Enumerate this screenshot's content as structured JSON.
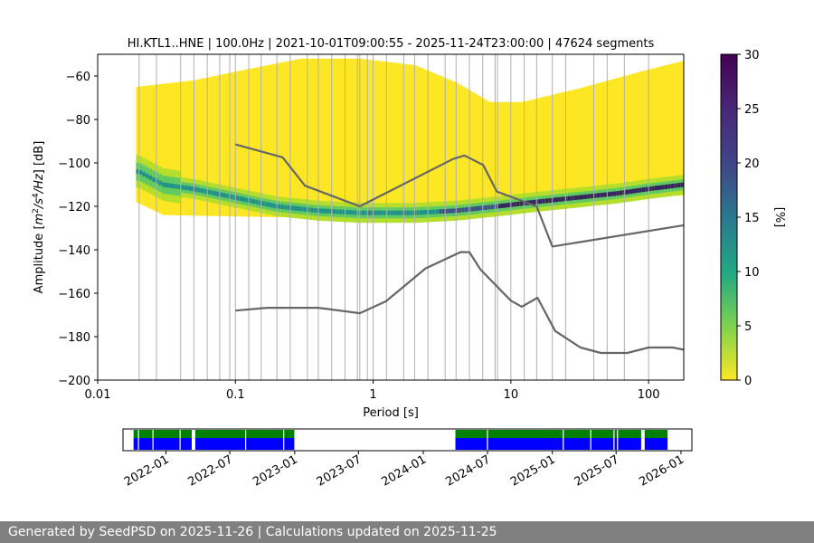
{
  "chart_data": [
    {
      "type": "heatmap",
      "title": "HI.KTL1..HNE | 100.0Hz | 2021-10-01T09:00:55 - 2025-11-24T23:00:00 | 47624 segments",
      "xlabel": "Period [s]",
      "ylabel_prefix": "Amplitude [",
      "ylabel_math": [
        "m",
        "2",
        "/s",
        "4",
        "/Hz"
      ],
      "ylabel_suffix": "] [dB]",
      "x_scale": "log",
      "xlim": [
        0.01,
        180
      ],
      "ylim": [
        -200,
        -50
      ],
      "x_ticks": [
        {
          "value": 0.01,
          "label": "0.01"
        },
        {
          "value": 0.1,
          "label": "0.1"
        },
        {
          "value": 1,
          "label": "1"
        },
        {
          "value": 10,
          "label": "10"
        },
        {
          "value": 100,
          "label": "100"
        }
      ],
      "y_ticks": [
        {
          "value": -60,
          "label": "−60"
        },
        {
          "value": -80,
          "label": "−80"
        },
        {
          "value": -100,
          "label": "−100"
        },
        {
          "value": -120,
          "label": "−120"
        },
        {
          "value": -140,
          "label": "−140"
        },
        {
          "value": -160,
          "label": "−160"
        },
        {
          "value": -180,
          "label": "−180"
        },
        {
          "value": -200,
          "label": "−200"
        }
      ],
      "grid": true,
      "grid_periods": [
        0.02,
        0.0267,
        0.04,
        0.05,
        0.0625,
        0.0769,
        0.0909,
        0.1,
        0.125,
        0.1538,
        0.2,
        0.25,
        0.333,
        0.4,
        0.5,
        0.625,
        0.769,
        0.8,
        0.909,
        1.0,
        1.25,
        1.667,
        2.0,
        2.5,
        3.333,
        4.0,
        5.0,
        6.25,
        7.69,
        8.0,
        10.0,
        12.5,
        15.38,
        20.0,
        25.0,
        40.0,
        50.0,
        66.7,
        100.0
      ],
      "density": {
        "mode_curve": [
          [
            0.02,
            -104
          ],
          [
            0.03,
            -110
          ],
          [
            0.05,
            -112
          ],
          [
            0.1,
            -116
          ],
          [
            0.2,
            -120
          ],
          [
            0.4,
            -122
          ],
          [
            0.8,
            -123
          ],
          [
            2,
            -123
          ],
          [
            4,
            -122
          ],
          [
            8,
            -120
          ],
          [
            15,
            -118
          ],
          [
            30,
            -116
          ],
          [
            60,
            -114
          ],
          [
            100,
            -112
          ],
          [
            180,
            -110
          ]
        ],
        "upper_envelope": [
          [
            0.019,
            -65
          ],
          [
            0.05,
            -62
          ],
          [
            0.1,
            -58
          ],
          [
            0.3,
            -52
          ],
          [
            0.8,
            -52
          ],
          [
            2,
            -55
          ],
          [
            4,
            -63
          ],
          [
            7,
            -72
          ],
          [
            12,
            -72
          ],
          [
            30,
            -66
          ],
          [
            100,
            -57
          ],
          [
            180,
            -53
          ]
        ],
        "lower_envelope": [
          [
            0.019,
            -118
          ],
          [
            0.03,
            -124
          ],
          [
            0.2,
            -125
          ],
          [
            1,
            -125
          ],
          [
            3,
            -124
          ],
          [
            8,
            -122
          ],
          [
            15,
            -120
          ],
          [
            40,
            -117
          ],
          [
            180,
            -115
          ]
        ],
        "colorbar": {
          "label": "[%]",
          "min": 0,
          "max": 30,
          "ticks": [
            "0",
            "5",
            "10",
            "15",
            "20",
            "25",
            "30"
          ]
        }
      },
      "series": [
        {
          "name": "",
          "color": "#666666",
          "points": [
            [
              0.1,
              -91.5
            ],
            [
              0.22,
              -97.4
            ],
            [
              0.32,
              -110.5
            ],
            [
              0.8,
              -120
            ],
            [
              3.8,
              -98.2
            ],
            [
              4.6,
              -96.6
            ],
            [
              6.3,
              -101
            ],
            [
              7.9,
              -113.2
            ],
            [
              15.4,
              -120
            ],
            [
              20,
              -138.5
            ],
            [
              180,
              -128.7
            ]
          ]
        },
        {
          "name": "",
          "color": "#666666",
          "points": [
            [
              0.1,
              -168
            ],
            [
              0.17,
              -166.7
            ],
            [
              0.4,
              -166.7
            ],
            [
              0.8,
              -169.2
            ],
            [
              1.24,
              -163.7
            ],
            [
              2.4,
              -148.6
            ],
            [
              4.3,
              -141.1
            ],
            [
              5.0,
              -141.1
            ],
            [
              6.0,
              -149
            ],
            [
              10,
              -163.4
            ],
            [
              12,
              -166.2
            ],
            [
              15.6,
              -162.1
            ],
            [
              21,
              -177.4
            ],
            [
              32,
              -185
            ],
            [
              45,
              -187.5
            ],
            [
              70,
              -187.5
            ],
            [
              100,
              -185
            ],
            [
              150,
              -185
            ],
            [
              180,
              -186
            ]
          ]
        }
      ]
    },
    {
      "type": "timeline",
      "x_ticks": [
        "2022-01",
        "2022-07",
        "2023-01",
        "2023-07",
        "2024-01",
        "2024-07",
        "2025-01",
        "2025-07",
        "2026-01"
      ],
      "xlim": [
        "2021-09-01",
        "2026-02-01"
      ],
      "rows": [
        {
          "name": "",
          "color": "#008000",
          "spans": [
            [
              "2021-10-01",
              "2022-03-15"
            ],
            [
              "2022-03-25",
              "2022-12-31"
            ],
            [
              "2024-04-01",
              "2025-09-10"
            ],
            [
              "2025-09-20",
              "2025-11-24"
            ]
          ]
        },
        {
          "name": "",
          "color": "#0000ff",
          "spans": [
            [
              "2021-10-01",
              "2022-03-15"
            ],
            [
              "2022-03-25",
              "2022-12-31"
            ],
            [
              "2024-04-01",
              "2025-09-10"
            ],
            [
              "2025-09-20",
              "2025-11-24"
            ]
          ]
        }
      ],
      "gap_lines": [
        "2021-10-15",
        "2021-11-25",
        "2022-02-10",
        "2022-03-20",
        "2022-03-22",
        "2022-08-15",
        "2022-12-01",
        "2024-07-01",
        "2025-02-01",
        "2025-04-20",
        "2025-06-25",
        "2025-07-05"
      ]
    }
  ],
  "footer": {
    "text": "Generated by SeedPSD on 2025-11-26 | Calculations updated on 2025-11-25"
  }
}
